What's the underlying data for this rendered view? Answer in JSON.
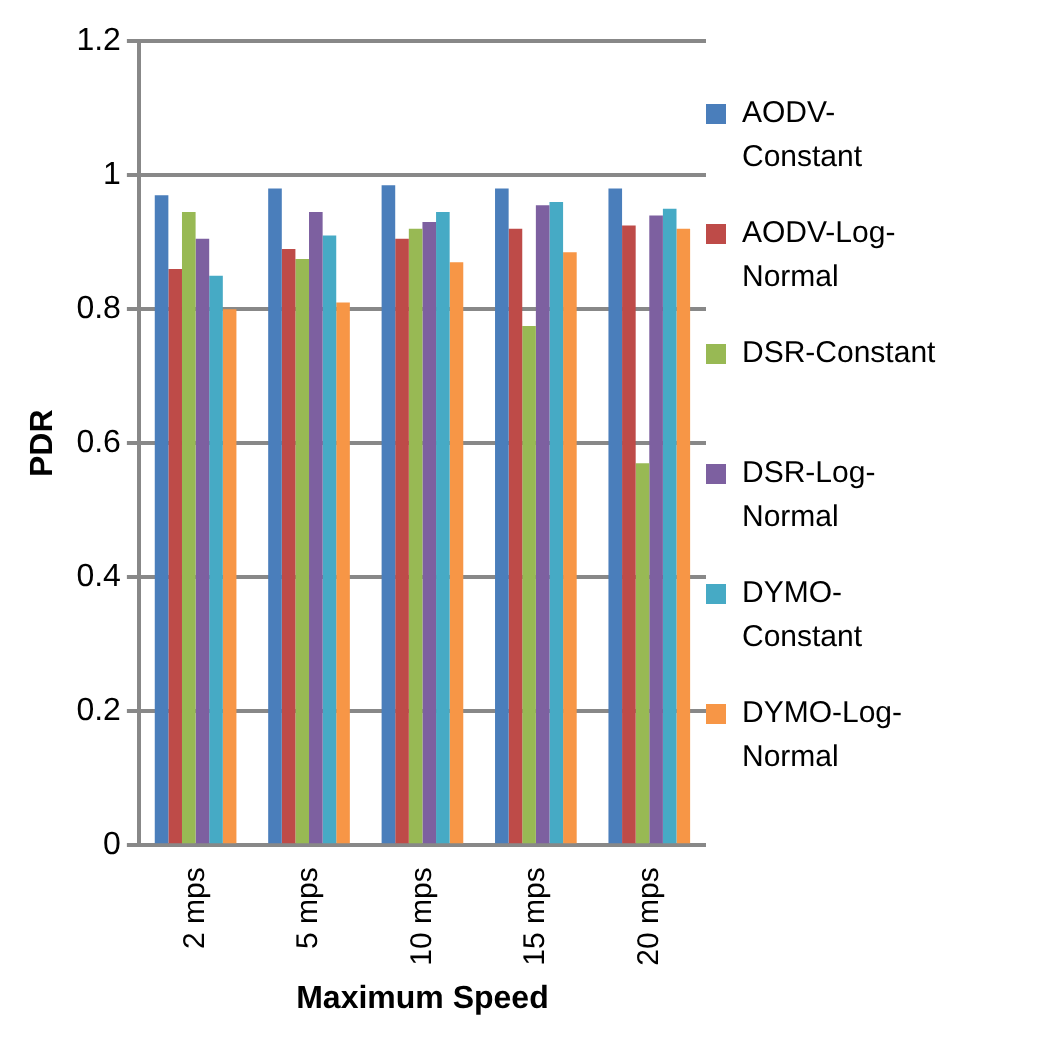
{
  "chart_data": {
    "type": "bar",
    "xlabel": "Maximum Speed",
    "ylabel": "PDR",
    "categories": [
      "2 mps",
      "5 mps",
      "10 mps",
      "15 mps",
      "20 mps"
    ],
    "series": [
      {
        "name": "AODV-Constant",
        "color": "#4a7ebb",
        "values": [
          0.97,
          0.98,
          0.985,
          0.98,
          0.98
        ]
      },
      {
        "name": "AODV-Log-Normal",
        "color": "#be4b48",
        "values": [
          0.86,
          0.89,
          0.905,
          0.92,
          0.925
        ]
      },
      {
        "name": "DSR-Constant",
        "color": "#98b954",
        "values": [
          0.945,
          0.875,
          0.92,
          0.775,
          0.57
        ]
      },
      {
        "name": "DSR-Log-Normal",
        "color": "#7d60a0",
        "values": [
          0.905,
          0.945,
          0.93,
          0.955,
          0.94
        ]
      },
      {
        "name": "DYMO-Constant",
        "color": "#46aac5",
        "values": [
          0.85,
          0.91,
          0.945,
          0.96,
          0.95
        ]
      },
      {
        "name": "DYMO-Log-Normal",
        "color": "#f79646",
        "values": [
          0.8,
          0.81,
          0.87,
          0.885,
          0.92
        ]
      }
    ],
    "ylim": [
      0,
      1.2
    ],
    "yticks": [
      0,
      0.2,
      0.4,
      0.6,
      0.8,
      1,
      1.2
    ],
    "grid": "y",
    "legend": "right"
  }
}
